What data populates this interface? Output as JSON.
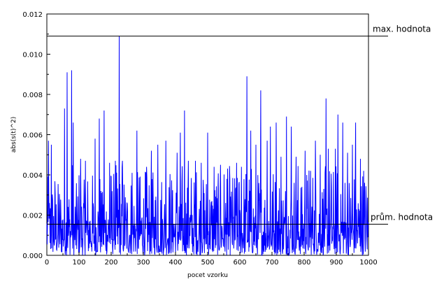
{
  "chart_data": {
    "type": "line",
    "title": "",
    "xlabel": "pocet vzorku",
    "ylabel": "abs(s(t)^2)",
    "xlim": [
      0,
      1000
    ],
    "ylim": [
      0,
      0.012
    ],
    "x_ticks": [
      0,
      100,
      200,
      300,
      400,
      500,
      600,
      700,
      800,
      900,
      1000
    ],
    "y_ticks": [
      0.0,
      0.002,
      0.004,
      0.006,
      0.008,
      0.01,
      0.012
    ],
    "y_tick_labels": [
      "0.000",
      "0.002",
      "0.004",
      "0.006",
      "0.008",
      "0.010",
      "0.012"
    ],
    "grid": false,
    "series": [
      {
        "color": "#0000ff",
        "n_samples": 1000,
        "noise_mean": 0.0015,
        "peaks": [
          {
            "x": 5,
            "y": 0.0057
          },
          {
            "x": 14,
            "y": 0.0055
          },
          {
            "x": 55,
            "y": 0.0073
          },
          {
            "x": 63,
            "y": 0.0091
          },
          {
            "x": 77,
            "y": 0.0092
          },
          {
            "x": 82,
            "y": 0.0066
          },
          {
            "x": 105,
            "y": 0.0048
          },
          {
            "x": 120,
            "y": 0.0047
          },
          {
            "x": 150,
            "y": 0.0058
          },
          {
            "x": 163,
            "y": 0.0068
          },
          {
            "x": 178,
            "y": 0.0072
          },
          {
            "x": 195,
            "y": 0.0046
          },
          {
            "x": 213,
            "y": 0.0047
          },
          {
            "x": 225,
            "y": 0.0109
          },
          {
            "x": 235,
            "y": 0.0047
          },
          {
            "x": 265,
            "y": 0.0041
          },
          {
            "x": 280,
            "y": 0.0062
          },
          {
            "x": 310,
            "y": 0.0044
          },
          {
            "x": 325,
            "y": 0.0052
          },
          {
            "x": 345,
            "y": 0.0055
          },
          {
            "x": 370,
            "y": 0.0057
          },
          {
            "x": 405,
            "y": 0.0051
          },
          {
            "x": 415,
            "y": 0.0061
          },
          {
            "x": 428,
            "y": 0.0072
          },
          {
            "x": 440,
            "y": 0.0047
          },
          {
            "x": 462,
            "y": 0.0047
          },
          {
            "x": 480,
            "y": 0.0046
          },
          {
            "x": 500,
            "y": 0.0061
          },
          {
            "x": 520,
            "y": 0.0044
          },
          {
            "x": 540,
            "y": 0.0045
          },
          {
            "x": 560,
            "y": 0.0038
          },
          {
            "x": 590,
            "y": 0.0046
          },
          {
            "x": 605,
            "y": 0.0044
          },
          {
            "x": 622,
            "y": 0.0089
          },
          {
            "x": 634,
            "y": 0.0062
          },
          {
            "x": 650,
            "y": 0.0055
          },
          {
            "x": 665,
            "y": 0.0082
          },
          {
            "x": 685,
            "y": 0.0057
          },
          {
            "x": 695,
            "y": 0.0064
          },
          {
            "x": 713,
            "y": 0.0066
          },
          {
            "x": 728,
            "y": 0.0049
          },
          {
            "x": 745,
            "y": 0.0069
          },
          {
            "x": 760,
            "y": 0.0064
          },
          {
            "x": 775,
            "y": 0.0049
          },
          {
            "x": 803,
            "y": 0.0052
          },
          {
            "x": 820,
            "y": 0.0042
          },
          {
            "x": 835,
            "y": 0.0057
          },
          {
            "x": 850,
            "y": 0.005
          },
          {
            "x": 868,
            "y": 0.0078
          },
          {
            "x": 875,
            "y": 0.0053
          },
          {
            "x": 897,
            "y": 0.0053
          },
          {
            "x": 905,
            "y": 0.007
          },
          {
            "x": 920,
            "y": 0.0066
          },
          {
            "x": 935,
            "y": 0.0051
          },
          {
            "x": 950,
            "y": 0.0055
          },
          {
            "x": 960,
            "y": 0.0066
          },
          {
            "x": 975,
            "y": 0.0048
          },
          {
            "x": 985,
            "y": 0.0042
          },
          {
            "x": 993,
            "y": 0.0027
          }
        ]
      }
    ],
    "reference_lines": [
      {
        "y": 0.0109,
        "label": "max. hodnota",
        "color": "#000000"
      },
      {
        "y": 0.00155,
        "label": "prům. hodnota",
        "color": "#000000"
      }
    ]
  }
}
